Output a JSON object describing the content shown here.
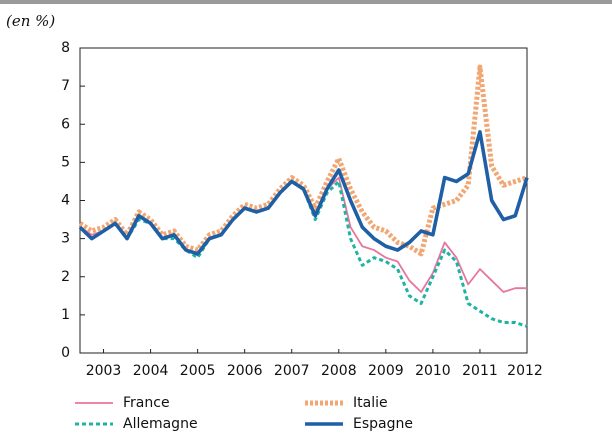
{
  "chart_data": {
    "type": "line",
    "unit_label": "(en %)",
    "x": [
      2003,
      2003.25,
      2003.5,
      2003.75,
      2004,
      2004.25,
      2004.5,
      2004.75,
      2005,
      2005.25,
      2005.5,
      2005.75,
      2006,
      2006.25,
      2006.5,
      2006.75,
      2007,
      2007.25,
      2007.5,
      2007.75,
      2008,
      2008.25,
      2008.5,
      2008.75,
      2009,
      2009.25,
      2009.5,
      2009.75,
      2010,
      2010.25,
      2010.5,
      2010.75,
      2011,
      2011.25,
      2011.5,
      2011.75,
      2012,
      2012.25,
      2012.5
    ],
    "series": [
      {
        "name": "France",
        "color": "#e8759e",
        "style": "solid",
        "values": [
          3.3,
          3.1,
          3.2,
          3.4,
          3.0,
          3.6,
          3.4,
          3.0,
          3.1,
          2.7,
          2.6,
          3.0,
          3.1,
          3.5,
          3.8,
          3.7,
          3.8,
          4.2,
          4.5,
          4.3,
          3.6,
          4.3,
          4.6,
          3.3,
          2.8,
          2.7,
          2.5,
          2.4,
          1.9,
          1.6,
          2.1,
          2.9,
          2.5,
          1.8,
          2.2,
          1.9,
          1.6,
          1.7,
          1.7
        ]
      },
      {
        "name": "Italie",
        "color": "#f2a673",
        "style": "dotted",
        "values": [
          3.4,
          3.2,
          3.3,
          3.5,
          3.1,
          3.7,
          3.5,
          3.1,
          3.2,
          2.8,
          2.7,
          3.1,
          3.2,
          3.6,
          3.9,
          3.8,
          3.9,
          4.3,
          4.6,
          4.4,
          3.8,
          4.5,
          5.1,
          4.3,
          3.7,
          3.3,
          3.2,
          2.9,
          2.8,
          2.6,
          3.8,
          3.9,
          4.0,
          4.4,
          7.5,
          4.9,
          4.4,
          4.5,
          4.6
        ]
      },
      {
        "name": "Allemagne",
        "color": "#1fb3a3",
        "style": "dotted",
        "values": [
          3.3,
          3.0,
          3.2,
          3.4,
          3.0,
          3.5,
          3.4,
          3.0,
          3.0,
          2.7,
          2.5,
          3.0,
          3.1,
          3.5,
          3.8,
          3.7,
          3.8,
          4.2,
          4.5,
          4.3,
          3.5,
          4.2,
          4.5,
          3.0,
          2.3,
          2.5,
          2.4,
          2.2,
          1.5,
          1.3,
          2.0,
          2.7,
          2.4,
          1.3,
          1.1,
          0.9,
          0.8,
          0.8,
          0.7
        ]
      },
      {
        "name": "Espagne",
        "color": "#1f5fa6",
        "style": "solid",
        "values": [
          3.3,
          3.0,
          3.2,
          3.4,
          3.0,
          3.6,
          3.4,
          3.0,
          3.1,
          2.7,
          2.6,
          3.0,
          3.1,
          3.5,
          3.8,
          3.7,
          3.8,
          4.2,
          4.5,
          4.3,
          3.6,
          4.3,
          4.8,
          4.0,
          3.3,
          3.0,
          2.8,
          2.7,
          2.9,
          3.2,
          3.1,
          4.6,
          4.5,
          4.7,
          5.8,
          4.0,
          3.5,
          3.6,
          4.6
        ]
      }
    ],
    "xlim": [
      2003,
      2012.5
    ],
    "xticks": [
      {
        "value": 2003.5,
        "label": "2003"
      },
      {
        "value": 2004.5,
        "label": "2004"
      },
      {
        "value": 2005.5,
        "label": "2005"
      },
      {
        "value": 2006.5,
        "label": "2006"
      },
      {
        "value": 2007.5,
        "label": "2007"
      },
      {
        "value": 2008.5,
        "label": "2008"
      },
      {
        "value": 2009.5,
        "label": "2009"
      },
      {
        "value": 2010.5,
        "label": "2010"
      },
      {
        "value": 2011.5,
        "label": "2011"
      },
      {
        "value": 2012.5,
        "label": "2012"
      }
    ],
    "ylim": [
      0,
      8
    ],
    "yticks": [
      0,
      1,
      2,
      3,
      4,
      5,
      6,
      7,
      8
    ],
    "grid": false
  }
}
